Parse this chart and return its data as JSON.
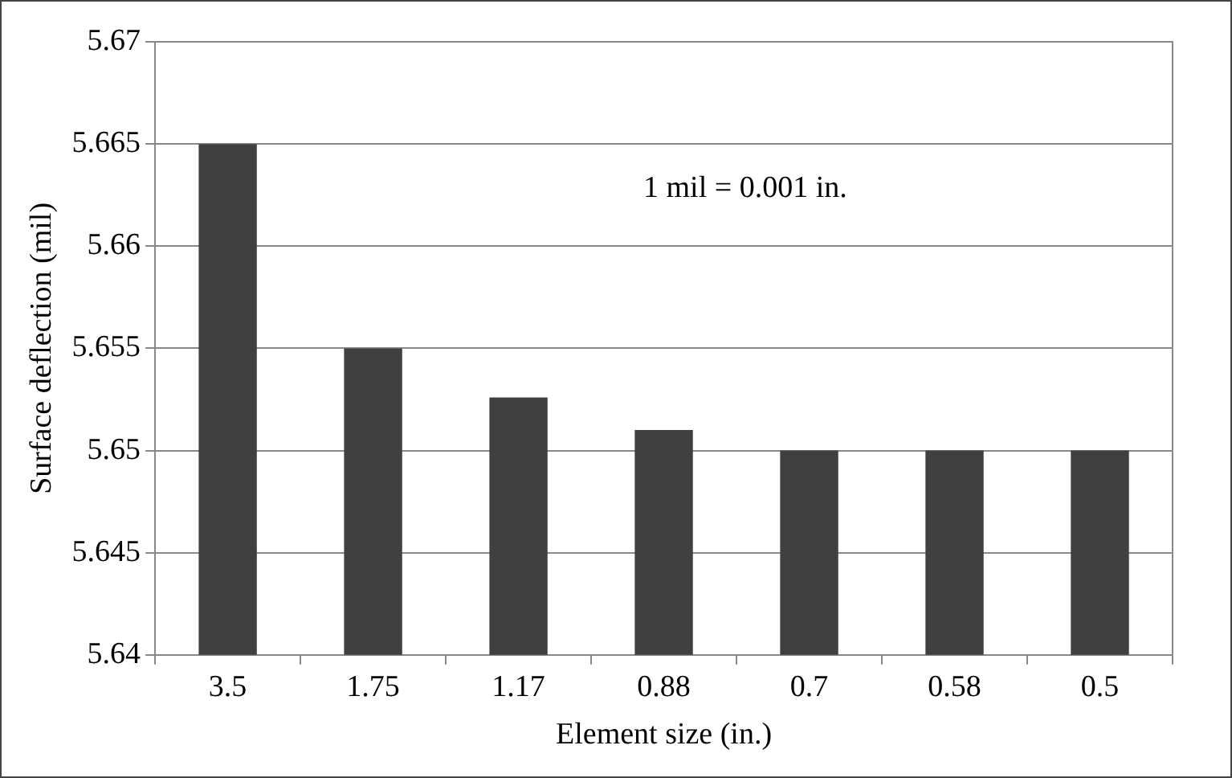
{
  "chart_data": {
    "type": "bar",
    "xlabel": "Element size (in.)",
    "ylabel": "Surface deflection (mil)",
    "categories": [
      "3.5",
      "1.75",
      "1.17",
      "0.88",
      "0.7",
      "0.58",
      "0.5"
    ],
    "values": [
      5.665,
      5.655,
      5.6526,
      5.651,
      5.65,
      5.65,
      5.65
    ],
    "color": "#404040",
    "ylim": [
      5.64,
      5.67
    ],
    "yticks": [
      5.64,
      5.645,
      5.65,
      5.655,
      5.66,
      5.665,
      5.67
    ],
    "grid": "y",
    "legend": false,
    "annotations": [
      "1 mil = 0.001 in."
    ]
  }
}
